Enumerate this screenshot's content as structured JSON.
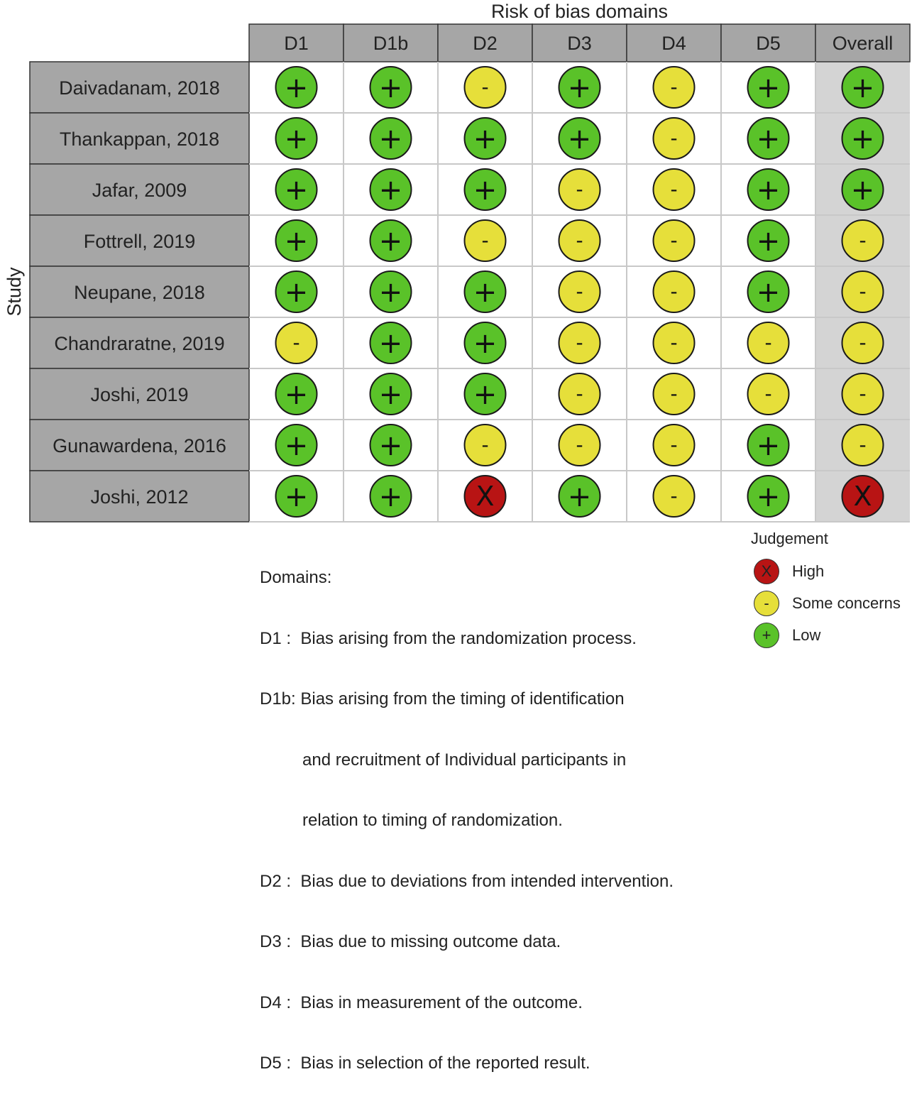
{
  "chart_data": {
    "type": "table",
    "title": "Risk of bias domains",
    "ylabel": "Study",
    "columns": [
      "D1",
      "D1b",
      "D2",
      "D3",
      "D4",
      "D5",
      "Overall"
    ],
    "rows": [
      {
        "study": "Daivadanam, 2018",
        "judgements": [
          "Low",
          "Low",
          "Some concerns",
          "Low",
          "Some concerns",
          "Low",
          "Low"
        ]
      },
      {
        "study": "Thankappan, 2018",
        "judgements": [
          "Low",
          "Low",
          "Low",
          "Low",
          "Some concerns",
          "Low",
          "Low"
        ]
      },
      {
        "study": "Jafar, 2009",
        "judgements": [
          "Low",
          "Low",
          "Low",
          "Some concerns",
          "Some concerns",
          "Low",
          "Low"
        ]
      },
      {
        "study": "Fottrell, 2019",
        "judgements": [
          "Low",
          "Low",
          "Some concerns",
          "Some concerns",
          "Some concerns",
          "Low",
          "Some concerns"
        ]
      },
      {
        "study": "Neupane, 2018",
        "judgements": [
          "Low",
          "Low",
          "Low",
          "Some concerns",
          "Some concerns",
          "Low",
          "Some concerns"
        ]
      },
      {
        "study": "Chandraratne, 2019",
        "judgements": [
          "Some concerns",
          "Low",
          "Low",
          "Some concerns",
          "Some concerns",
          "Some concerns",
          "Some concerns"
        ]
      },
      {
        "study": "Joshi, 2019",
        "judgements": [
          "Low",
          "Low",
          "Low",
          "Some concerns",
          "Some concerns",
          "Some concerns",
          "Some concerns"
        ]
      },
      {
        "study": "Gunawardena, 2016",
        "judgements": [
          "Low",
          "Low",
          "Some concerns",
          "Some concerns",
          "Some concerns",
          "Low",
          "Some concerns"
        ]
      },
      {
        "study": "Joshi, 2012",
        "judgements": [
          "Low",
          "Low",
          "High",
          "Low",
          "Some concerns",
          "Low",
          "High"
        ]
      }
    ],
    "judgement_styles": {
      "High": {
        "symbol": "X",
        "color": "#b81414"
      },
      "Some concerns": {
        "symbol": "-",
        "color": "#e6df3a"
      },
      "Low": {
        "symbol": "+",
        "color": "#5ac229"
      }
    }
  },
  "colors": {
    "header_fill": "#a6a6a6",
    "overall_fill": "#d4d4d4",
    "grid_line": "#c8c8c8",
    "border": "#333333"
  },
  "domains_section": {
    "heading": "Domains:",
    "lines": [
      "D1 :  Bias arising from the randomization process.",
      "D1b: Bias arising from the timing of identification",
      "         and recruitment of Individual participants in",
      "         relation to timing of randomization.",
      "D2 :  Bias due to deviations from intended intervention.",
      "D3 :  Bias due to missing outcome data.",
      "D4 :  Bias in measurement of the outcome.",
      "D5 :  Bias in selection of the reported result."
    ]
  },
  "legend": {
    "title": "Judgement",
    "items": [
      {
        "label": "High",
        "symbol": "X",
        "color": "#b81414"
      },
      {
        "label": "Some concerns",
        "symbol": "-",
        "color": "#e6df3a"
      },
      {
        "label": "Low",
        "symbol": "+",
        "color": "#5ac229"
      }
    ]
  }
}
